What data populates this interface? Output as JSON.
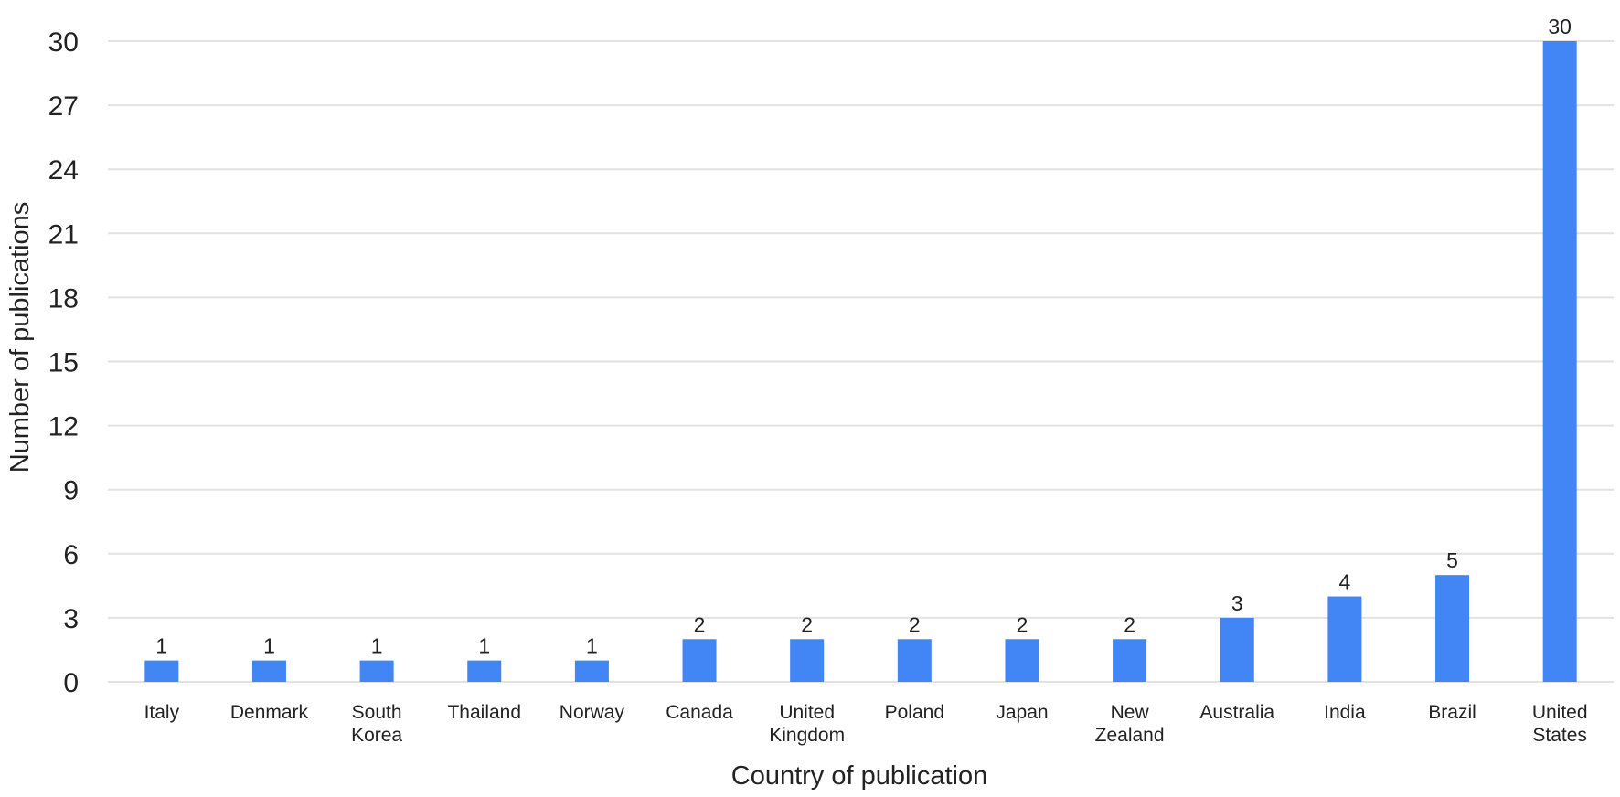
{
  "chart_data": {
    "type": "bar",
    "xlabel": "Country of publication",
    "ylabel": "Number of publications",
    "ylim": [
      0,
      30
    ],
    "yticks": [
      0,
      3,
      6,
      9,
      12,
      15,
      18,
      21,
      24,
      27,
      30
    ],
    "grid": true,
    "legend": "none",
    "bar_color": "#4285f4",
    "categories": [
      [
        "Italy"
      ],
      [
        "Denmark"
      ],
      [
        "South",
        "Korea"
      ],
      [
        "Thailand"
      ],
      [
        "Norway"
      ],
      [
        "Canada"
      ],
      [
        "United",
        "Kingdom"
      ],
      [
        "Poland"
      ],
      [
        "Japan"
      ],
      [
        "New",
        "Zealand"
      ],
      [
        "Australia"
      ],
      [
        "India"
      ],
      [
        "Brazil"
      ],
      [
        "United",
        "States"
      ]
    ],
    "values": [
      1,
      1,
      1,
      1,
      1,
      2,
      2,
      2,
      2,
      2,
      3,
      4,
      5,
      30
    ],
    "data_labels": [
      "1",
      "1",
      "1",
      "1",
      "1",
      "2",
      "2",
      "2",
      "2",
      "2",
      "3",
      "4",
      "5",
      "30"
    ]
  }
}
